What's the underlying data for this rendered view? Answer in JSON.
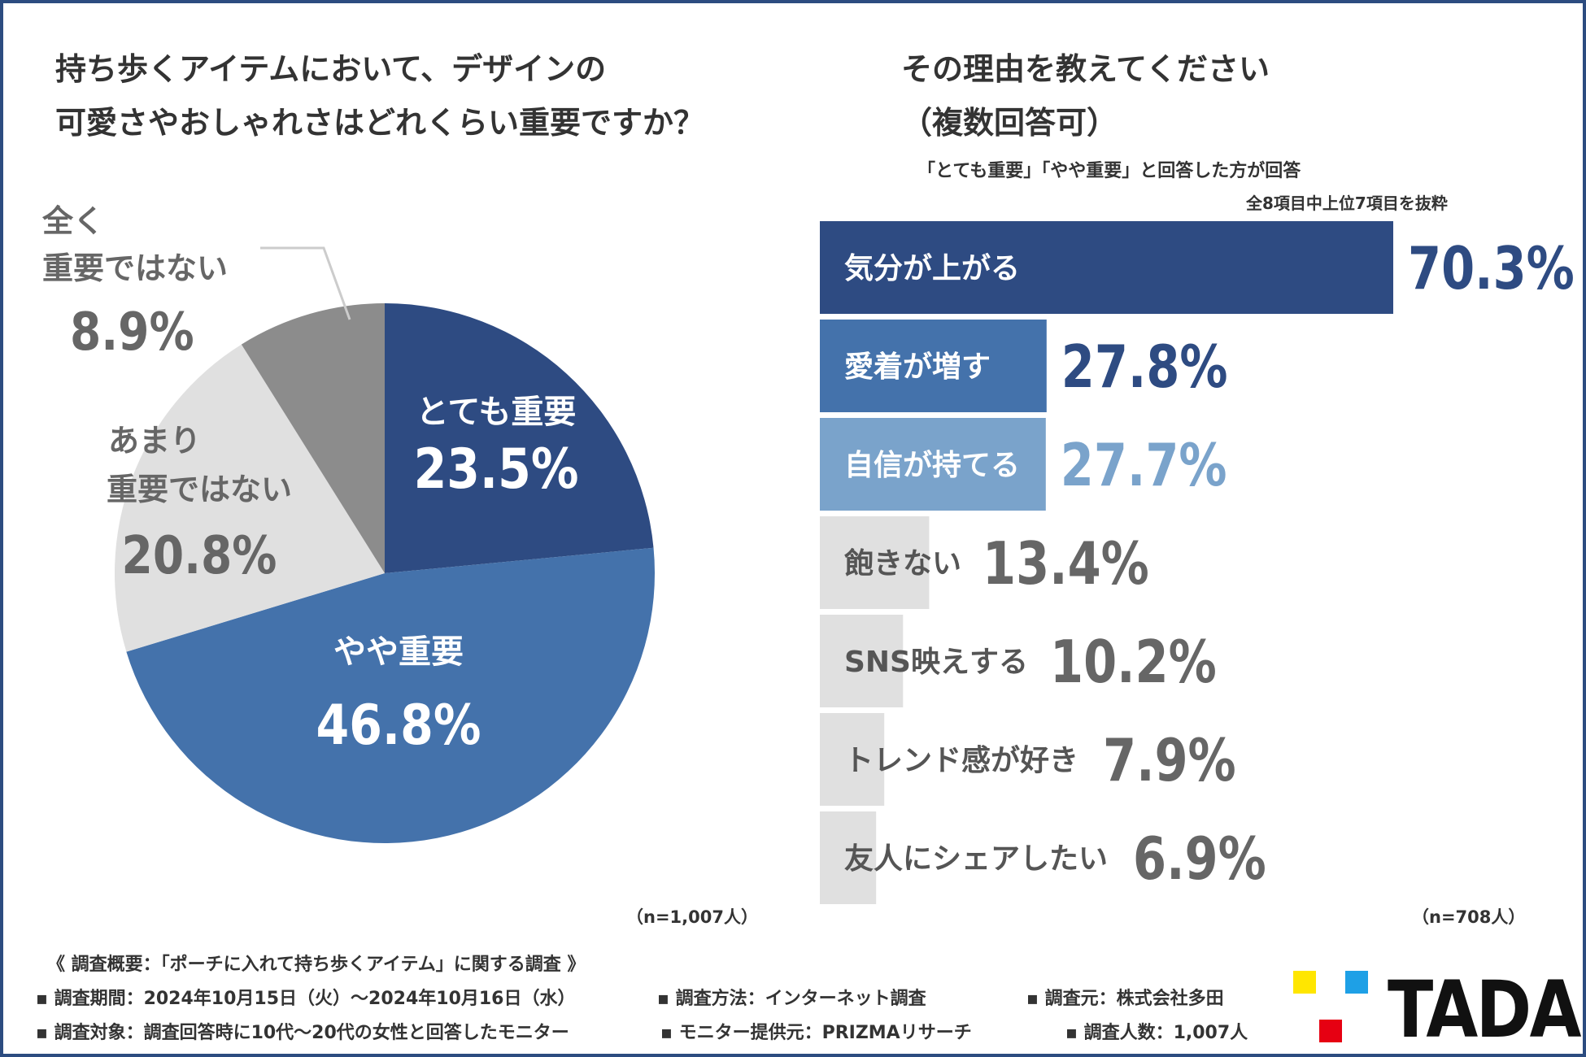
{
  "left": {
    "title_line1": "持ち歩くアイテムにおいて、デザインの",
    "title_line2": "可愛さやおしゃれさはどれくらい重要ですか？",
    "n_note": "（n=1,007人）"
  },
  "right": {
    "title_line1": "その理由を教えてください",
    "title_line2": "（複数回答可）",
    "subnote1": "「とても重要」「やや重要」と回答した方が回答",
    "subnote2": "全8項目中上位7項目を抜粋",
    "n_note": "（n=708人）"
  },
  "chart_data": [
    {
      "type": "pie",
      "title": "持ち歩くアイテムにおいて、デザインの可愛さやおしゃれさはどれくらい重要ですか？",
      "slices": [
        {
          "label": "とても重要",
          "label_lines": [
            "とても重要"
          ],
          "value": 23.5,
          "value_text": "23.5%",
          "color": "#2e4b82"
        },
        {
          "label": "やや重要",
          "label_lines": [
            "やや重要"
          ],
          "value": 46.8,
          "value_text": "46.8%",
          "color": "#4472ab"
        },
        {
          "label": "あまり重要ではない",
          "label_lines": [
            "あまり",
            "重要ではない"
          ],
          "value": 20.8,
          "value_text": "20.8%",
          "color": "#e0e0e0"
        },
        {
          "label": "全く重要ではない",
          "label_lines": [
            "全く",
            "重要ではない"
          ],
          "value": 8.9,
          "value_text": "8.9%",
          "color": "#8c8c8c"
        }
      ],
      "start_angle": "12 o'clock, clockwise"
    },
    {
      "type": "bar",
      "orientation": "horizontal",
      "title": "その理由を教えてください（複数回答可）",
      "categories": [
        "気分が上がる",
        "愛着が増す",
        "自信が持てる",
        "飽きない",
        "SNS映えする",
        "トレンド感が好き",
        "友人にシェアしたい"
      ],
      "values": [
        70.3,
        27.8,
        27.7,
        13.4,
        10.2,
        7.9,
        6.9
      ],
      "value_texts": [
        "70.3%",
        "27.8%",
        "27.7%",
        "13.4%",
        "10.2%",
        "7.9%",
        "6.9%"
      ],
      "bar_colors": [
        "#2e4b82",
        "#4472ab",
        "#7aa3cb",
        "#e0e0e0",
        "#e0e0e0",
        "#e0e0e0",
        "#e0e0e0"
      ],
      "value_colors": [
        "#2e4b82",
        "#2e4b82",
        "#7aa3cb",
        "#666666",
        "#666666",
        "#666666",
        "#666666"
      ],
      "label_colors": [
        "#ffffff",
        "#ffffff",
        "#ffffff",
        "#555555",
        "#555555",
        "#555555",
        "#555555"
      ],
      "xlim": [
        0,
        70.3
      ]
    }
  ],
  "footer": {
    "heading": "《 調査概要：「ポーチに入れて持ち歩くアイテム」に関する調査 》",
    "period": "▪ 調査期間：2024年10月15日（火）～2024年10月16日（水）",
    "method": "▪ 調査方法：インターネット調査",
    "source": "▪ 調査元：株式会社多田",
    "target": "▪ 調査対象：調査回答時に10代～20代の女性と回答したモニター",
    "provider": "▪ モニター提供元：PRIZMAリサーチ",
    "count": "▪ 調査人数：1,007人"
  },
  "logo": {
    "text": "TADA",
    "colors": {
      "yellow": "#ffe600",
      "blue": "#1ea0e6",
      "red": "#e60012"
    }
  }
}
